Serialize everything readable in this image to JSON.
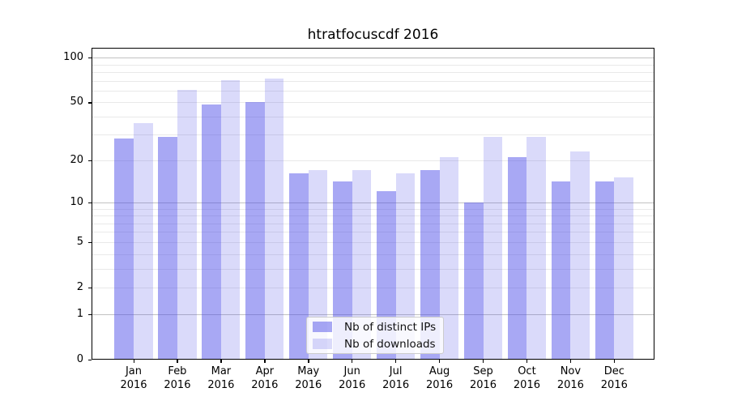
{
  "chart_data": {
    "type": "bar",
    "title": "htratfocuscdf 2016",
    "x_tick_line1": [
      "Jan",
      "Feb",
      "Mar",
      "Apr",
      "May",
      "Jun",
      "Jul",
      "Aug",
      "Sep",
      "Oct",
      "Nov",
      "Dec"
    ],
    "x_tick_line2": "2016",
    "series": [
      {
        "name": "Nb of distinct IPs",
        "color": "rgba(70,70,232,0.47)",
        "values": [
          28,
          29,
          48,
          50,
          16,
          14,
          12,
          17,
          10,
          21,
          14,
          14
        ]
      },
      {
        "name": "Nb of downloads",
        "color": "rgba(70,70,232,0.20)",
        "values": [
          36,
          60,
          70,
          72,
          17,
          17,
          16,
          21,
          29,
          29,
          23,
          15
        ]
      }
    ],
    "y_axis": {
      "scale": "symlog-log1p",
      "major_ticks": [
        0,
        1,
        2,
        5,
        10,
        20,
        50,
        100
      ],
      "gridlines_light": [
        2,
        3,
        4,
        5,
        6,
        7,
        8,
        9,
        20,
        30,
        40,
        50,
        60,
        70,
        80,
        90
      ],
      "gridlines_dark": [
        1,
        10,
        100
      ],
      "ymax": 100
    },
    "legend_position": "lower center",
    "grid": true
  },
  "colors": {
    "spine": "#000000",
    "grid_light": "#e9e9e9",
    "grid_dark": "#c2c2c2",
    "bar_dark_on_white": "#a8a8f4",
    "bar_light_on_white": "#dadaf9"
  }
}
